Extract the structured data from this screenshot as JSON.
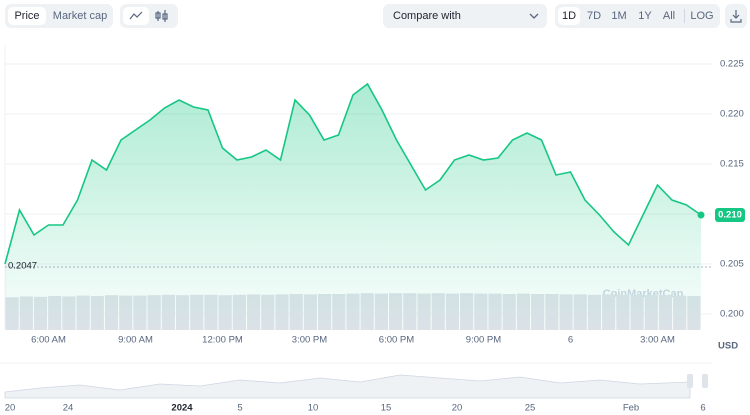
{
  "toolbar": {
    "tabs": [
      "Price",
      "Market cap"
    ],
    "compare": "Compare with",
    "ranges": [
      "1D",
      "7D",
      "1M",
      "1Y",
      "All"
    ],
    "log": "LOG"
  },
  "chart_data": {
    "type": "line",
    "color": "#16c784",
    "values": [
      0.205,
      0.2104,
      0.2079,
      0.2089,
      0.2089,
      0.2114,
      0.2154,
      0.2144,
      0.2174,
      0.2184,
      0.2194,
      0.2206,
      0.2214,
      0.2207,
      0.2204,
      0.2166,
      0.2154,
      0.2157,
      0.2164,
      0.2154,
      0.2214,
      0.2199,
      0.2174,
      0.2179,
      0.2219,
      0.223,
      0.2204,
      0.2174,
      0.2149,
      0.2124,
      0.2134,
      0.2154,
      0.2159,
      0.2154,
      0.2156,
      0.2174,
      0.2181,
      0.2174,
      0.2139,
      0.2142,
      0.2114,
      0.2099,
      0.2082,
      0.2069,
      0.2099,
      0.2129,
      0.2114,
      0.2109,
      0.2099
    ],
    "last_value_label": "0.210",
    "reference_line": 0.2047,
    "xlim": [
      0,
      48
    ],
    "xticks": [
      {
        "value": 3,
        "label": "6:00 AM"
      },
      {
        "value": 9,
        "label": "9:00 AM"
      },
      {
        "value": 15,
        "label": "12:00 PM"
      },
      {
        "value": 21,
        "label": "3:00 PM"
      },
      {
        "value": 27,
        "label": "6:00 PM"
      },
      {
        "value": 33,
        "label": "9:00 PM"
      },
      {
        "value": 39,
        "label": "6"
      },
      {
        "value": 45,
        "label": "3:00 AM"
      }
    ],
    "ylim": [
      0.1984,
      0.2269
    ],
    "yticks": [
      0.225,
      {
        "value": 0.22,
        "label": "0.220"
      },
      0.215,
      {
        "value": 0.21,
        "label": "0.210"
      },
      0.205,
      {
        "value": 0.2,
        "label": "0.200"
      }
    ],
    "y_unit": "USD",
    "watermark": "CoinMarketCap",
    "grid": true,
    "volume": [
      82,
      84,
      83,
      85,
      84,
      86,
      85,
      87,
      86,
      86,
      87,
      88,
      87,
      88,
      88,
      87,
      88,
      89,
      88,
      89,
      90,
      89,
      90,
      90,
      91,
      92,
      91,
      92,
      92,
      91,
      92,
      91,
      92,
      91,
      91,
      90,
      91,
      90,
      90,
      89,
      89,
      88,
      89,
      88,
      88,
      87,
      87,
      86,
      85
    ],
    "volume_lim": [
      0,
      100
    ]
  },
  "navigator": {
    "labels": [
      "20",
      "24",
      "2024",
      "5",
      "10",
      "15",
      "20",
      "25",
      "Feb",
      "6"
    ]
  }
}
